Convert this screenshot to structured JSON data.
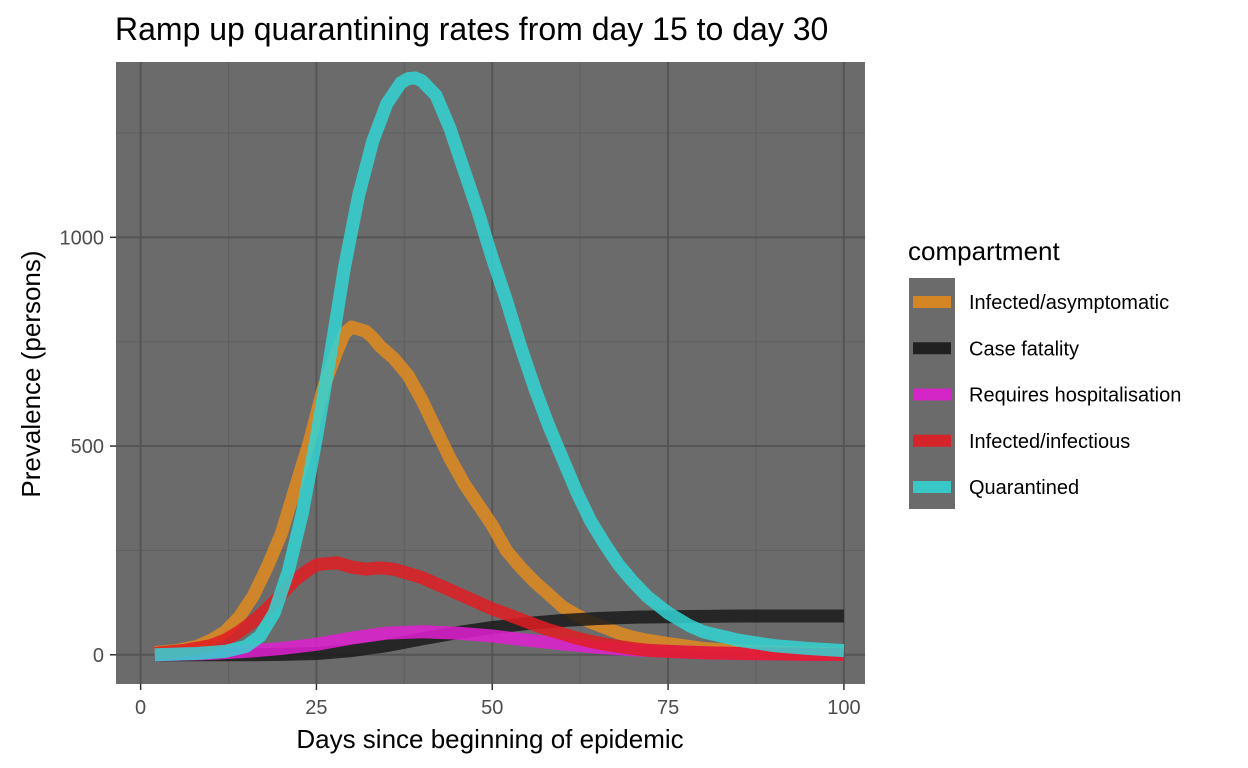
{
  "chart_data": {
    "type": "line",
    "title": "Ramp up quarantining rates from day 15 to day 30",
    "xlabel": "Days since beginning of epidemic",
    "ylabel": "Prevalence (persons)",
    "xlim": [
      -3.5,
      103
    ],
    "ylim": [
      -70,
      1420
    ],
    "x_ticks": [
      0,
      25,
      50,
      75,
      100
    ],
    "y_ticks": [
      0,
      500,
      1000
    ],
    "grid": true,
    "legend": {
      "title": "compartment",
      "position": "right"
    },
    "series": [
      {
        "name": "Infected/asymptomatic",
        "color": "#e08a1e",
        "x": [
          2,
          5,
          8,
          10,
          12,
          14,
          16,
          18,
          20,
          22,
          24,
          26,
          28,
          29,
          30,
          31,
          32,
          33,
          34,
          36,
          38,
          40,
          42,
          44,
          46,
          48,
          50,
          52,
          54,
          56,
          58,
          60,
          62,
          64,
          66,
          68,
          70,
          72,
          75,
          78,
          80,
          85,
          90,
          95,
          100
        ],
        "y": [
          5,
          10,
          20,
          35,
          55,
          90,
          140,
          210,
          290,
          400,
          510,
          640,
          730,
          770,
          785,
          780,
          775,
          760,
          740,
          710,
          670,
          610,
          540,
          470,
          410,
          360,
          310,
          250,
          210,
          175,
          145,
          115,
          95,
          78,
          65,
          52,
          42,
          35,
          27,
          20,
          15,
          10,
          6,
          4,
          2
        ]
      },
      {
        "name": "Case fatality",
        "color": "#1a1a1a",
        "x": [
          2,
          15,
          20,
          25,
          30,
          35,
          40,
          45,
          50,
          55,
          60,
          65,
          70,
          75,
          80,
          85,
          90,
          95,
          100
        ],
        "y": [
          0,
          0,
          1,
          3,
          10,
          22,
          38,
          53,
          65,
          75,
          82,
          87,
          90,
          91,
          92,
          93,
          93,
          93,
          93
        ]
      },
      {
        "name": "Requires hospitalisation",
        "color": "#e01fd0",
        "x": [
          2,
          10,
          15,
          20,
          25,
          30,
          35,
          40,
          45,
          50,
          55,
          60,
          65,
          70,
          75,
          80,
          85,
          90,
          95,
          100
        ],
        "y": [
          0,
          3,
          8,
          15,
          25,
          40,
          52,
          55,
          52,
          45,
          35,
          26,
          18,
          12,
          8,
          5,
          3,
          2,
          1,
          1
        ]
      },
      {
        "name": "Infected/infectious",
        "color": "#e01c22",
        "x": [
          2,
          6,
          10,
          12,
          14,
          16,
          18,
          20,
          22,
          24,
          25,
          26,
          28,
          30,
          32,
          34,
          36,
          38,
          40,
          42,
          44,
          46,
          48,
          50,
          52,
          54,
          56,
          58,
          60,
          62,
          64,
          66,
          68,
          70,
          72,
          75,
          80,
          85,
          90,
          95,
          100
        ],
        "y": [
          3,
          10,
          22,
          35,
          55,
          80,
          110,
          145,
          180,
          205,
          215,
          218,
          220,
          210,
          205,
          208,
          205,
          195,
          185,
          170,
          155,
          140,
          125,
          110,
          98,
          85,
          72,
          60,
          50,
          40,
          32,
          25,
          20,
          15,
          11,
          8,
          5,
          3,
          2,
          1,
          1
        ]
      },
      {
        "name": "Quarantined",
        "color": "#33d3d3",
        "x": [
          2,
          8,
          12,
          15,
          17,
          19,
          21,
          23,
          25,
          27,
          29,
          31,
          33,
          35,
          37,
          38,
          39,
          40,
          42,
          44,
          46,
          48,
          50,
          52,
          54,
          56,
          58,
          60,
          62,
          64,
          66,
          68,
          70,
          72,
          75,
          78,
          80,
          85,
          90,
          95,
          100
        ],
        "y": [
          0,
          3,
          8,
          20,
          45,
          100,
          200,
          340,
          520,
          720,
          930,
          1100,
          1230,
          1320,
          1370,
          1380,
          1382,
          1375,
          1340,
          1260,
          1160,
          1060,
          950,
          850,
          740,
          640,
          550,
          470,
          390,
          320,
          265,
          215,
          175,
          140,
          100,
          70,
          55,
          35,
          22,
          15,
          10
        ]
      }
    ]
  }
}
